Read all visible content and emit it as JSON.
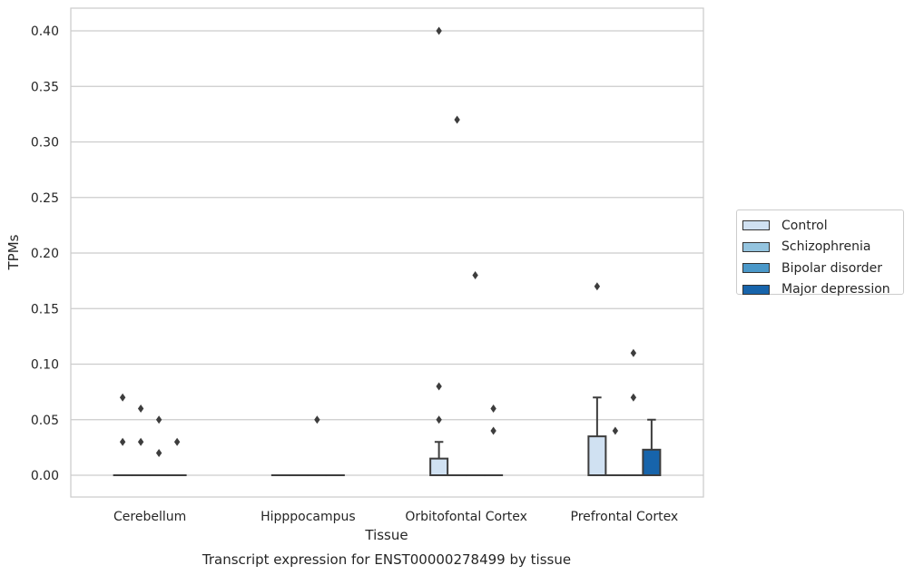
{
  "chart_data": {
    "type": "box",
    "title": "Transcript expression for ENST00000278499 by tissue",
    "xlabel": "Tissue",
    "ylabel": "TPMs",
    "ylim": [
      -0.02,
      0.42
    ],
    "yticks": [
      "0.00",
      "0.05",
      "0.10",
      "0.15",
      "0.20",
      "0.25",
      "0.30",
      "0.35",
      "0.40"
    ],
    "grid": true,
    "legend_position": "right",
    "categories": [
      "Cerebellum",
      "Hipppocampus",
      "Orbitofontal Cortex",
      "Prefrontal Cortex"
    ],
    "series": [
      {
        "name": "Control",
        "color": "#d0e1f2",
        "boxes": [
          {
            "q1": 0,
            "median": 0,
            "q3": 0,
            "whislo": 0,
            "whishi": 0,
            "fliers": [
              0.07,
              0.03
            ]
          },
          {
            "q1": 0,
            "median": 0,
            "q3": 0,
            "whislo": 0,
            "whishi": 0,
            "fliers": []
          },
          {
            "q1": 0,
            "median": 0,
            "q3": 0.015,
            "whislo": 0,
            "whishi": 0.03,
            "fliers": [
              0.4,
              0.08,
              0.05
            ]
          },
          {
            "q1": 0,
            "median": 0,
            "q3": 0.035,
            "whislo": 0,
            "whishi": 0.07,
            "fliers": [
              0.17
            ]
          }
        ]
      },
      {
        "name": "Schizophrenia",
        "color": "#94c4df",
        "boxes": [
          {
            "q1": 0,
            "median": 0,
            "q3": 0,
            "whislo": 0,
            "whishi": 0,
            "fliers": [
              0.06,
              0.03
            ]
          },
          {
            "q1": 0,
            "median": 0,
            "q3": 0,
            "whislo": 0,
            "whishi": 0,
            "fliers": []
          },
          {
            "q1": 0,
            "median": 0,
            "q3": 0,
            "whislo": 0,
            "whishi": 0,
            "fliers": [
              0.32
            ]
          },
          {
            "q1": 0,
            "median": 0,
            "q3": 0,
            "whislo": 0,
            "whishi": 0,
            "fliers": [
              0.04
            ]
          }
        ]
      },
      {
        "name": "Bipolar disorder",
        "color": "#4a98c9",
        "boxes": [
          {
            "q1": 0,
            "median": 0,
            "q3": 0,
            "whislo": 0,
            "whishi": 0,
            "fliers": [
              0.05,
              0.02
            ]
          },
          {
            "q1": 0,
            "median": 0,
            "q3": 0,
            "whislo": 0,
            "whishi": 0,
            "fliers": [
              0.05
            ]
          },
          {
            "q1": 0,
            "median": 0,
            "q3": 0,
            "whislo": 0,
            "whishi": 0,
            "fliers": [
              0.18
            ]
          },
          {
            "q1": 0,
            "median": 0,
            "q3": 0,
            "whislo": 0,
            "whishi": 0,
            "fliers": [
              0.11,
              0.07
            ]
          }
        ]
      },
      {
        "name": "Major depression",
        "color": "#1764ab",
        "boxes": [
          {
            "q1": 0,
            "median": 0,
            "q3": 0,
            "whislo": 0,
            "whishi": 0,
            "fliers": [
              0.03
            ]
          },
          {
            "q1": 0,
            "median": 0,
            "q3": 0,
            "whislo": 0,
            "whishi": 0,
            "fliers": []
          },
          {
            "q1": 0,
            "median": 0,
            "q3": 0,
            "whislo": 0,
            "whishi": 0,
            "fliers": [
              0.06,
              0.04
            ]
          },
          {
            "q1": 0,
            "median": 0,
            "q3": 0.023,
            "whislo": 0,
            "whishi": 0.05,
            "fliers": []
          }
        ]
      }
    ]
  }
}
